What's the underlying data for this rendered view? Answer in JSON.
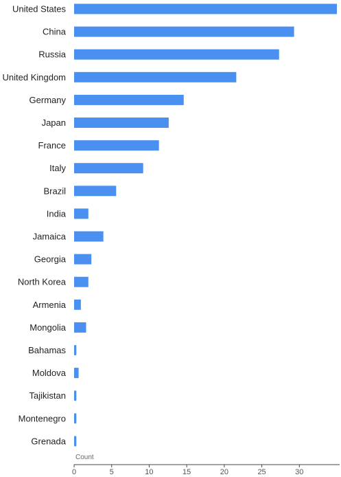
{
  "chart_data": {
    "type": "bar",
    "orientation": "horizontal",
    "categories": [
      "United States",
      "China",
      "Russia",
      "United Kingdom",
      "Germany",
      "Japan",
      "France",
      "Italy",
      "Brazil",
      "India",
      "Jamaica",
      "Georgia",
      "North Korea",
      "Armenia",
      "Mongolia",
      "Bahamas",
      "Moldova",
      "Tajikistan",
      "Montenegro",
      "Grenada"
    ],
    "values": [
      35,
      29.3,
      27.3,
      21.6,
      14.6,
      12.6,
      11.3,
      9.2,
      5.6,
      1.9,
      3.9,
      2.3,
      1.9,
      0.9,
      1.6,
      0.3,
      0.6,
      0.3,
      0.3,
      0.3
    ],
    "xlabel": "Count",
    "ylabel": "",
    "xlim": [
      0,
      35
    ],
    "xticks": [
      "0",
      "5",
      "10",
      "15",
      "20",
      "25",
      "30"
    ],
    "bar_color": "#4a90f0",
    "grid": false
  }
}
